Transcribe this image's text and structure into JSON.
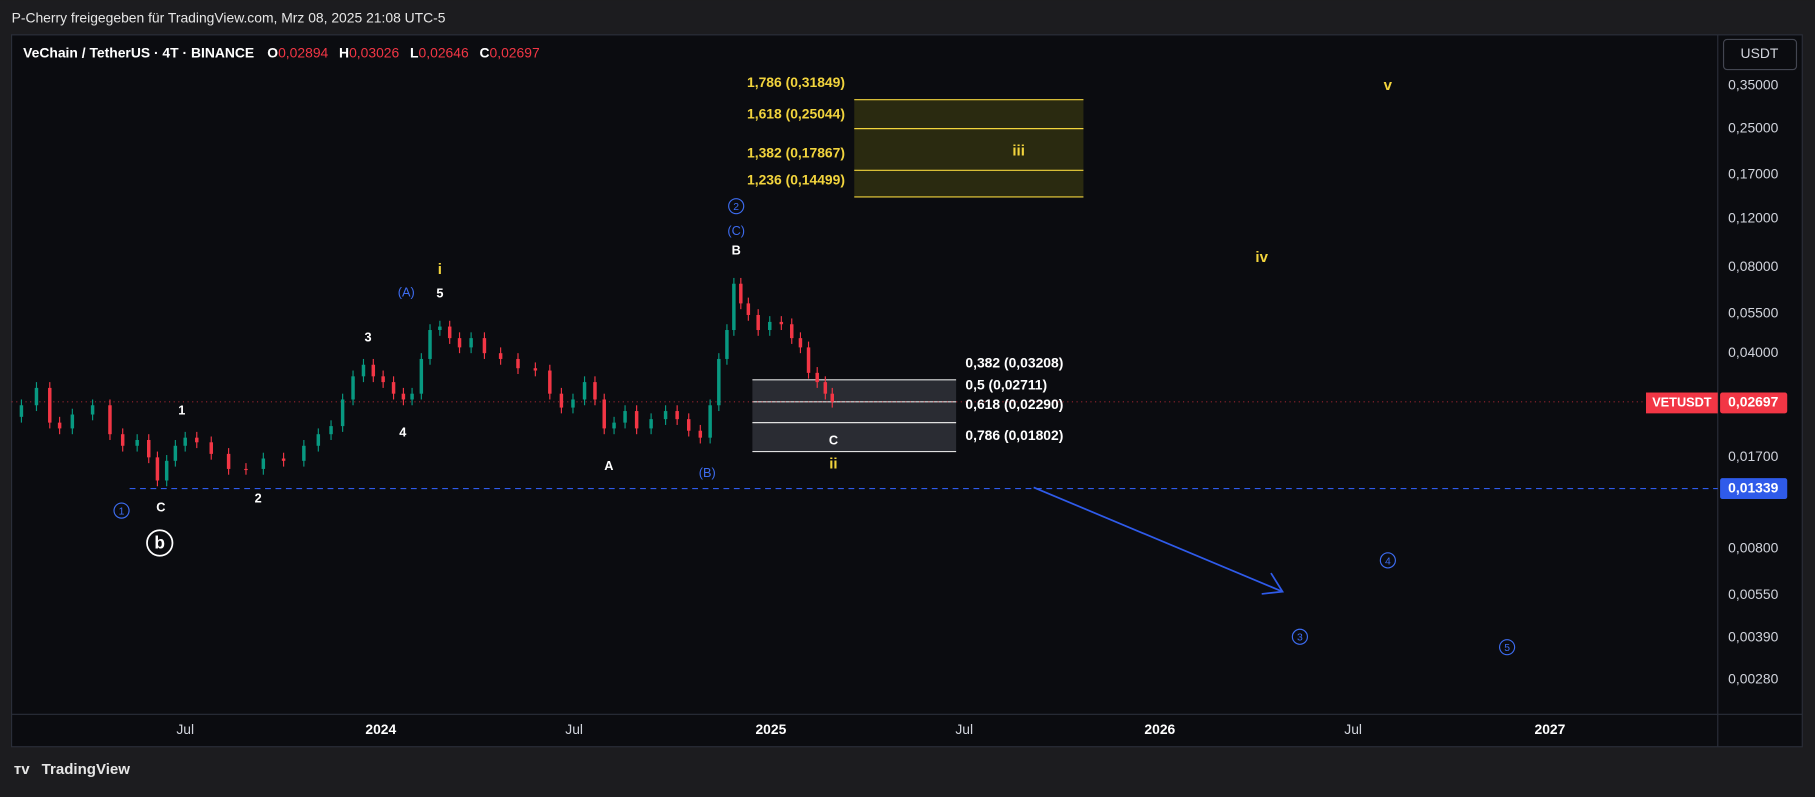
{
  "header": {
    "title": "P-Cherry freigegeben für TradingView.com, Mrz 08, 2025 21:08 UTC-5"
  },
  "legend": {
    "symbol": "VeChain / TetherUS · 4T · BINANCE",
    "open_label": "O",
    "open": "0,02894",
    "high_label": "H",
    "high": "0,03026",
    "low_label": "L",
    "low": "0,02646",
    "close_label": "C",
    "close": "0,02697"
  },
  "currency": "USDT",
  "price_axis": [
    "0,35000",
    "0,25000",
    "0,17000",
    "0,12000",
    "0,08000",
    "0,05500",
    "0,04000",
    "0,01700",
    "0,00800",
    "0,00550",
    "0,00390",
    "0,00280"
  ],
  "last_price": {
    "symbol": "VETUSDT",
    "price": "0,02697"
  },
  "support_price": "0,01339",
  "time_axis": [
    "Jul",
    "2024",
    "Jul",
    "2025",
    "Jul",
    "2026",
    "Jul",
    "2027"
  ],
  "fib_upper": [
    "1,786 (0,31849)",
    "1,618 (0,25044)",
    "1,382 (0,17867)",
    "1,236 (0,14499)"
  ],
  "fib_lower": [
    "0,382 (0,03208)",
    "0,5 (0,02711)",
    "0,618 (0,02290)",
    "0,786 (0,01802)"
  ],
  "wave_labels": [
    "1",
    "2",
    "3",
    "4",
    "5",
    "C",
    "A",
    "B",
    "C",
    "(A)",
    "(B)",
    "(C)",
    "i",
    "ii",
    "iii",
    "iv",
    "v",
    "1",
    "2",
    "3",
    "4",
    "5",
    "b"
  ],
  "footer": {
    "brand": "TradingView"
  }
}
